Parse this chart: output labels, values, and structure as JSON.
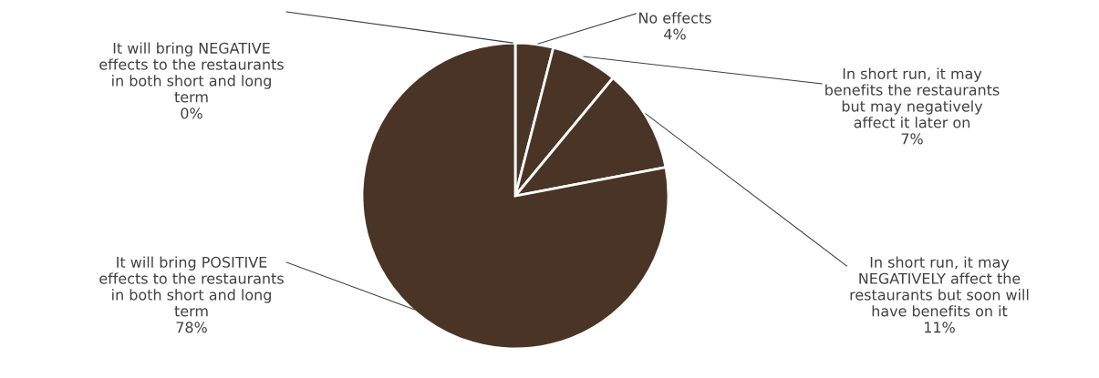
{
  "chart_data": {
    "type": "pie",
    "categories": [
      "It will bring NEGATIVE\neffects to the restaurants\nin both short and long\nterm",
      "No effects",
      "In short run, it may\nbenefits the restaurants\nbut may negatively\naffect it later on",
      "In short run, it may\nNEGATIVELY affect the\nrestaurants but soon will\nhave benefits on it",
      "It will bring POSITIVE\neffects to the restaurants\nin both short and long\nterm"
    ],
    "values": [
      0,
      4,
      7,
      11,
      78
    ],
    "value_labels": [
      "0%",
      "4%",
      "7%",
      "11%",
      "78%"
    ],
    "colors": [
      "#4a3426",
      "#4a3426",
      "#4a3426",
      "#4a3426",
      "#4a3426"
    ],
    "legend": false
  }
}
